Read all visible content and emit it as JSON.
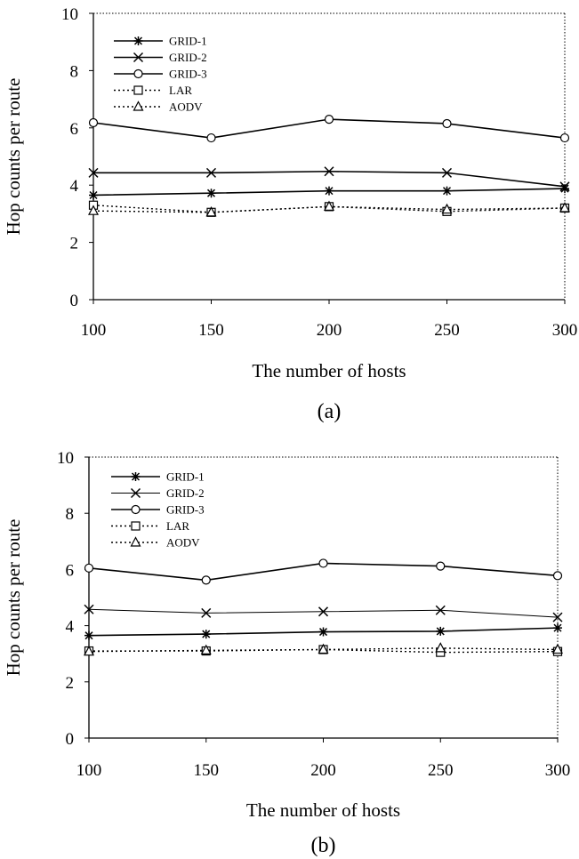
{
  "chart_data": [
    {
      "type": "line",
      "caption": "(a)",
      "xlabel": "The number of hosts",
      "ylabel": "Hop counts per route",
      "x": [
        100,
        150,
        200,
        250,
        300
      ],
      "ylim": [
        0,
        10
      ],
      "yticks": [
        0,
        2,
        4,
        6,
        8,
        10
      ],
      "legend_position": "top-left",
      "series": [
        {
          "name": "GRID-1",
          "values": [
            3.65,
            3.72,
            3.8,
            3.8,
            3.88
          ],
          "marker": "asterisk",
          "dash": "solid"
        },
        {
          "name": "GRID-2",
          "values": [
            4.43,
            4.43,
            4.48,
            4.43,
            3.95
          ],
          "marker": "x",
          "dash": "solid"
        },
        {
          "name": "GRID-3",
          "values": [
            6.18,
            5.65,
            6.3,
            6.15,
            5.65
          ],
          "marker": "circle",
          "dash": "solid"
        },
        {
          "name": "LAR",
          "values": [
            3.3,
            3.05,
            3.25,
            3.08,
            3.2
          ],
          "marker": "square",
          "dash": "dotted"
        },
        {
          "name": "AODV",
          "values": [
            3.1,
            3.05,
            3.25,
            3.15,
            3.2
          ],
          "marker": "triangle",
          "dash": "dotted"
        }
      ]
    },
    {
      "type": "line",
      "caption": "(b)",
      "xlabel": "The number of hosts",
      "ylabel": "Hop counts per route",
      "x": [
        100,
        150,
        200,
        250,
        300
      ],
      "ylim": [
        0,
        10
      ],
      "yticks": [
        0,
        2,
        4,
        6,
        8,
        10
      ],
      "legend_position": "top-left",
      "series": [
        {
          "name": "GRID-1",
          "values": [
            3.65,
            3.7,
            3.78,
            3.8,
            3.92
          ],
          "marker": "asterisk",
          "dash": "solid"
        },
        {
          "name": "GRID-2",
          "values": [
            4.58,
            4.45,
            4.5,
            4.55,
            4.3
          ],
          "marker": "x",
          "dash": "thin"
        },
        {
          "name": "GRID-3",
          "values": [
            6.05,
            5.62,
            6.22,
            6.12,
            5.78
          ],
          "marker": "circle",
          "dash": "solid"
        },
        {
          "name": "LAR",
          "values": [
            3.1,
            3.1,
            3.15,
            3.05,
            3.08
          ],
          "marker": "square",
          "dash": "dotted"
        },
        {
          "name": "AODV",
          "values": [
            3.08,
            3.12,
            3.15,
            3.2,
            3.15
          ],
          "marker": "triangle",
          "dash": "dotted"
        }
      ]
    }
  ]
}
